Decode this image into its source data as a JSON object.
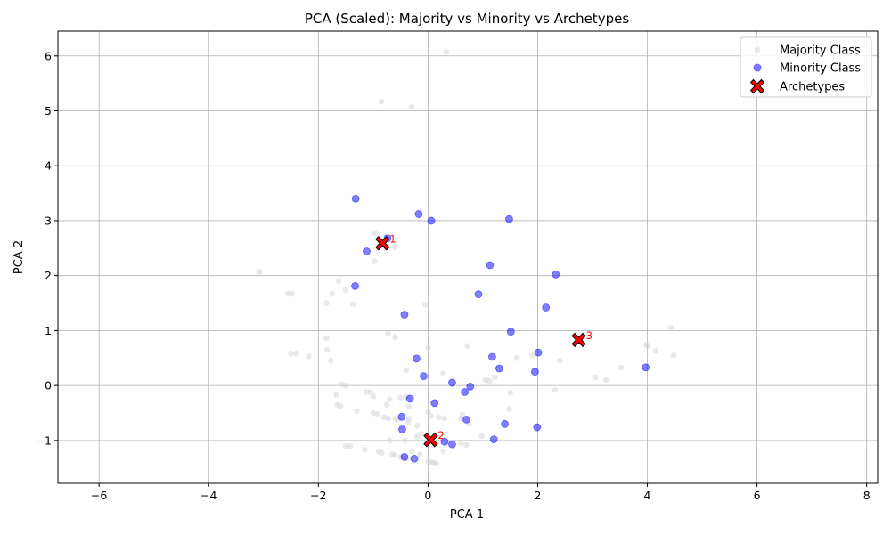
{
  "chart_data": {
    "type": "scatter",
    "title": "PCA (Scaled): Majority vs Minority vs Archetypes",
    "xlabel": "PCA 1",
    "ylabel": "PCA 2",
    "xlim": [
      -6.75,
      8.2
    ],
    "ylim": [
      -1.78,
      6.45
    ],
    "xticks": [
      -6,
      -4,
      -2,
      0,
      2,
      4,
      6,
      8
    ],
    "yticks": [
      -1,
      0,
      1,
      2,
      3,
      4,
      5,
      6
    ],
    "grid": true,
    "legend_position": "top-right",
    "series": [
      {
        "name": "Majority Class",
        "color": "#d3d3d3",
        "marker": "circle",
        "points": [
          [
            0.33,
            6.07
          ],
          [
            -0.85,
            5.17
          ],
          [
            -0.3,
            5.07
          ],
          [
            -3.07,
            2.07
          ],
          [
            -2.55,
            1.67
          ],
          [
            -2.48,
            1.67
          ],
          [
            -1.75,
            1.67
          ],
          [
            -1.63,
            1.9
          ],
          [
            -1.5,
            1.73
          ],
          [
            -1.37,
            1.48
          ],
          [
            -1.85,
            1.5
          ],
          [
            -0.97,
            2.78
          ],
          [
            -0.98,
            2.26
          ],
          [
            -0.6,
            2.52
          ],
          [
            -0.05,
            1.47
          ],
          [
            -0.73,
            0.95
          ],
          [
            -0.6,
            0.88
          ],
          [
            -0.4,
            0.28
          ],
          [
            0.0,
            0.69
          ],
          [
            -1.85,
            0.86
          ],
          [
            -1.84,
            0.65
          ],
          [
            -2.5,
            0.58
          ],
          [
            -2.4,
            0.58
          ],
          [
            -2.18,
            0.53
          ],
          [
            -1.77,
            0.45
          ],
          [
            -1.57,
            0.02
          ],
          [
            -1.5,
            0.0
          ],
          [
            -1.67,
            -0.17
          ],
          [
            -1.12,
            -0.12
          ],
          [
            -1.05,
            -0.12
          ],
          [
            -1.0,
            -0.2
          ],
          [
            -0.7,
            -0.25
          ],
          [
            -0.5,
            -0.22
          ],
          [
            -0.4,
            -0.2
          ],
          [
            -0.35,
            -0.38
          ],
          [
            -0.75,
            -0.35
          ],
          [
            -1.3,
            -0.47
          ],
          [
            -1.65,
            -0.35
          ],
          [
            -1.6,
            -0.38
          ],
          [
            -1.0,
            -0.5
          ],
          [
            -0.92,
            -0.52
          ],
          [
            -0.8,
            -0.58
          ],
          [
            -0.72,
            -0.6
          ],
          [
            -0.6,
            -0.6
          ],
          [
            -0.55,
            -0.62
          ],
          [
            -0.35,
            -0.6
          ],
          [
            -0.36,
            -0.67
          ],
          [
            -0.2,
            -0.73
          ],
          [
            0.0,
            -0.48
          ],
          [
            0.05,
            -0.55
          ],
          [
            0.2,
            -0.58
          ],
          [
            0.3,
            -0.6
          ],
          [
            0.6,
            -0.6
          ],
          [
            0.63,
            -0.53
          ],
          [
            0.75,
            -0.7
          ],
          [
            -1.5,
            -1.1
          ],
          [
            -1.42,
            -1.1
          ],
          [
            -1.15,
            -1.17
          ],
          [
            -0.7,
            -1.0
          ],
          [
            -0.42,
            -1.0
          ],
          [
            -0.9,
            -1.2
          ],
          [
            -0.85,
            -1.23
          ],
          [
            -0.65,
            -1.25
          ],
          [
            -0.6,
            -1.27
          ],
          [
            -0.5,
            -1.3
          ],
          [
            -0.4,
            -1.32
          ],
          [
            -0.3,
            -1.2
          ],
          [
            -0.15,
            -1.25
          ],
          [
            0.0,
            -1.38
          ],
          [
            0.05,
            -1.39
          ],
          [
            0.1,
            -1.4
          ],
          [
            0.15,
            -1.42
          ],
          [
            -0.12,
            -0.88
          ],
          [
            -0.2,
            -0.93
          ],
          [
            0.28,
            -1.2
          ],
          [
            0.35,
            -1.05
          ],
          [
            0.6,
            -1.05
          ],
          [
            0.7,
            -1.08
          ],
          [
            0.98,
            -0.92
          ],
          [
            1.05,
            0.1
          ],
          [
            1.12,
            0.08
          ],
          [
            1.22,
            0.15
          ],
          [
            0.72,
            0.72
          ],
          [
            0.28,
            0.22
          ],
          [
            1.48,
            -0.43
          ],
          [
            1.5,
            -0.13
          ],
          [
            1.62,
            0.5
          ],
          [
            1.9,
            0.55
          ],
          [
            2.32,
            -0.08
          ],
          [
            2.4,
            0.45
          ],
          [
            3.05,
            0.15
          ],
          [
            3.25,
            0.1
          ],
          [
            3.52,
            0.33
          ],
          [
            3.98,
            0.74
          ],
          [
            4.15,
            0.63
          ],
          [
            4.43,
            1.05
          ],
          [
            4.48,
            0.55
          ],
          [
            4.01,
            0.72
          ]
        ]
      },
      {
        "name": "Minority Class",
        "color": "#0000ff",
        "marker": "circle",
        "points": [
          [
            -1.32,
            3.4
          ],
          [
            -0.17,
            3.12
          ],
          [
            0.06,
            3.0
          ],
          [
            1.48,
            3.03
          ],
          [
            -0.74,
            2.68
          ],
          [
            -1.12,
            2.44
          ],
          [
            1.13,
            2.19
          ],
          [
            2.33,
            2.02
          ],
          [
            -1.33,
            1.81
          ],
          [
            0.92,
            1.66
          ],
          [
            2.15,
            1.42
          ],
          [
            -0.43,
            1.29
          ],
          [
            1.51,
            0.98
          ],
          [
            2.01,
            0.6
          ],
          [
            -0.21,
            0.49
          ],
          [
            1.17,
            0.52
          ],
          [
            1.3,
            0.31
          ],
          [
            1.95,
            0.25
          ],
          [
            3.97,
            0.33
          ],
          [
            -0.08,
            0.17
          ],
          [
            0.44,
            0.05
          ],
          [
            0.77,
            -0.02
          ],
          [
            0.67,
            -0.12
          ],
          [
            -0.33,
            -0.24
          ],
          [
            0.12,
            -0.32
          ],
          [
            -0.48,
            -0.57
          ],
          [
            0.7,
            -0.62
          ],
          [
            1.4,
            -0.7
          ],
          [
            1.99,
            -0.76
          ],
          [
            -0.47,
            -0.8
          ],
          [
            0.3,
            -1.02
          ],
          [
            0.44,
            -1.07
          ],
          [
            1.2,
            -0.98
          ],
          [
            -0.43,
            -1.3
          ],
          [
            -0.25,
            -1.33
          ]
        ]
      },
      {
        "name": "Archetypes",
        "color": "#ff0000",
        "marker": "x",
        "points": [
          [
            -0.83,
            2.59
          ],
          [
            0.05,
            -0.99
          ],
          [
            2.75,
            0.83
          ]
        ]
      }
    ],
    "annotations": [
      {
        "text": "1",
        "x": -0.83,
        "y": 2.59
      },
      {
        "text": "2",
        "x": 0.05,
        "y": -0.99
      },
      {
        "text": "3",
        "x": 2.75,
        "y": 0.83
      }
    ]
  }
}
